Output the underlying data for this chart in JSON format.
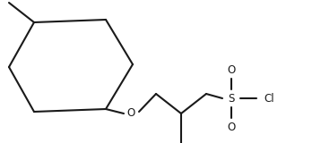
{
  "background_color": "#ffffff",
  "line_color": "#1a1a1a",
  "line_width": 1.5,
  "text_color": "#1a1a1a",
  "font_size": 8.5,
  "figsize": [
    3.58,
    1.6
  ],
  "dpi": 100,
  "oxygen_label": "O",
  "sulfur_label": "S",
  "chlorine_label": "Cl",
  "oxygen_top_label": "O",
  "oxygen_bottom_label": "O"
}
